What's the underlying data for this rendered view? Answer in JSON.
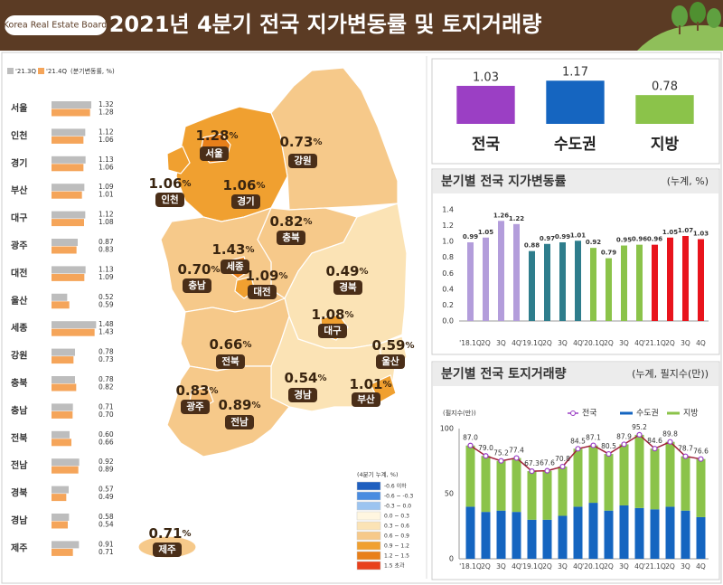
{
  "header": {
    "brand": "Korea Real Estate Board",
    "title": "2021년 4분기 전국 지가변동률 및 토지거래량"
  },
  "map": {
    "unit": "%",
    "regions": [
      {
        "name": "서울",
        "value": "1.28"
      },
      {
        "name": "강원",
        "value": "0.73"
      },
      {
        "name": "인천",
        "value": "1.06"
      },
      {
        "name": "경기",
        "value": "1.06"
      },
      {
        "name": "충북",
        "value": "0.82"
      },
      {
        "name": "세종",
        "value": "1.43"
      },
      {
        "name": "충남",
        "value": "0.70"
      },
      {
        "name": "대전",
        "value": "1.09"
      },
      {
        "name": "경북",
        "value": "0.49"
      },
      {
        "name": "대구",
        "value": "1.08"
      },
      {
        "name": "울산",
        "value": "0.59"
      },
      {
        "name": "전북",
        "value": "0.66"
      },
      {
        "name": "경남",
        "value": "0.54"
      },
      {
        "name": "부산",
        "value": "1.01"
      },
      {
        "name": "광주",
        "value": "0.83"
      },
      {
        "name": "전남",
        "value": "0.89"
      },
      {
        "name": "제주",
        "value": "0.71"
      }
    ],
    "legend": {
      "title": "(4분기 누계, %)",
      "items": [
        {
          "label": "-0.6 이하",
          "color": "#1f5fbf"
        },
        {
          "label": "-0.6 ~ -0.3",
          "color": "#4a8ce0"
        },
        {
          "label": "-0.3 ~ 0.0",
          "color": "#9cc4f0"
        },
        {
          "label": "0.0 ~ 0.3",
          "color": "#fff6e0"
        },
        {
          "label": "0.3 ~ 0.6",
          "color": "#fbe3b5"
        },
        {
          "label": "0.6 ~ 0.9",
          "color": "#f6c98a"
        },
        {
          "label": "0.9 ~ 1.2",
          "color": "#f0a030"
        },
        {
          "label": "1.2 ~ 1.5",
          "color": "#e87f1a"
        },
        {
          "label": "1.5 초과",
          "color": "#e8401c"
        }
      ]
    }
  },
  "chart_data": [
    {
      "type": "hbar",
      "subtitle": "(분기변동률, %)",
      "categories": [
        "서울",
        "인천",
        "경기",
        "부산",
        "대구",
        "광주",
        "대전",
        "울산",
        "세종",
        "강원",
        "충북",
        "충남",
        "전북",
        "전남",
        "경북",
        "경남",
        "제주"
      ],
      "xlim": [
        0,
        1.5
      ],
      "series": [
        {
          "name": "'21.3Q",
          "color": "#bdbdbd",
          "values": [
            1.32,
            1.12,
            1.13,
            1.09,
            1.12,
            0.87,
            1.13,
            0.52,
            1.48,
            0.78,
            0.78,
            0.71,
            0.6,
            0.92,
            0.57,
            0.58,
            0.91
          ],
          "value_labels": [
            "1.32",
            "1.12",
            "1.13",
            "1.09",
            "1.12",
            "0.87",
            "1.13",
            "0.52",
            "1.48",
            "0.78",
            "0.78",
            "0.71",
            "0.60",
            "0.92",
            "0.57",
            "0.58",
            "0.91"
          ]
        },
        {
          "name": "'21.4Q",
          "color": "#f5a55a",
          "values": [
            1.28,
            1.06,
            1.06,
            1.01,
            1.08,
            0.83,
            1.09,
            0.59,
            1.43,
            0.73,
            0.82,
            0.7,
            0.66,
            0.89,
            0.49,
            0.54,
            0.71
          ],
          "value_labels": [
            "1.28",
            "1.06",
            "1.06",
            "1.01",
            "1.08",
            "0.83",
            "1.09",
            "0.59",
            "1.43",
            "0.73",
            "0.82",
            "0.70",
            "0.66",
            "0.89",
            "0.49",
            "0.54",
            "0.71"
          ]
        }
      ]
    },
    {
      "type": "bar",
      "categories": [
        "전국",
        "수도권",
        "지방"
      ],
      "values": [
        1.03,
        1.17,
        0.78
      ],
      "colors": [
        "#9b3fc4",
        "#1565c0",
        "#8bc34a"
      ],
      "ylim": [
        0,
        1.2
      ]
    },
    {
      "type": "bar",
      "title": "분기별 전국 지가변동률",
      "subtitle": "(누계, %)",
      "categories": [
        "'18.1Q",
        "2Q",
        "3Q",
        "4Q",
        "'19.1Q",
        "2Q",
        "3Q",
        "4Q",
        "'20.1Q",
        "2Q",
        "3Q",
        "4Q",
        "'21.1Q",
        "2Q",
        "3Q",
        "4Q"
      ],
      "values": [
        0.99,
        1.05,
        1.26,
        1.22,
        0.88,
        0.97,
        0.99,
        1.01,
        0.92,
        0.79,
        0.95,
        0.96,
        0.96,
        1.05,
        1.07,
        1.03
      ],
      "colors": [
        "#b39ddb",
        "#b39ddb",
        "#b39ddb",
        "#b39ddb",
        "#2e7d8c",
        "#2e7d8c",
        "#2e7d8c",
        "#2e7d8c",
        "#8bc34a",
        "#8bc34a",
        "#8bc34a",
        "#8bc34a",
        "#e8141c",
        "#e8141c",
        "#e8141c",
        "#e8141c"
      ],
      "ylim": [
        0,
        1.4
      ],
      "yticks": [
        {
          "value": 0,
          "label": "0.0"
        },
        0.2,
        0.4,
        0.6,
        0.8,
        {
          "value": 1,
          "label": "1.0"
        },
        1.2,
        1.4
      ]
    },
    {
      "type": "stacked_bar",
      "title": "분기별 전국 토지거래량",
      "subtitle": "(누계, 필지수(만))",
      "y_label": "(필지수(만))",
      "categories": [
        "'18.1Q",
        "2Q",
        "3Q",
        "4Q",
        "'19.1Q",
        "2Q",
        "3Q",
        "4Q",
        "'20.1Q",
        "2Q",
        "3Q",
        "4Q",
        "'21.1Q",
        "2Q",
        "3Q",
        "4Q"
      ],
      "ylim": [
        0,
        100
      ],
      "yticks": [
        0,
        50,
        100
      ],
      "series": [
        {
          "name": "전국",
          "type": "line",
          "color": "#9b3fc4",
          "values": [
            87.0,
            79.0,
            75.2,
            77.4,
            67.3,
            67.6,
            70.8,
            84.5,
            87.1,
            80.5,
            87.9,
            95.2,
            84.6,
            89.8,
            78.7,
            76.6
          ],
          "value_labels": [
            "87.0",
            "79.0",
            "75.2",
            "77.4",
            "67.3",
            "67.6",
            "70.8",
            "84.5",
            "87.1",
            "80.5",
            "87.9",
            "95.2",
            "84.6",
            "89.8",
            "78.7",
            "76.6"
          ]
        },
        {
          "name": "수도권",
          "color": "#1565c0",
          "values": [
            40,
            36,
            37,
            36,
            30,
            30,
            33,
            40,
            43,
            37,
            41,
            39,
            38,
            40,
            37,
            32
          ]
        },
        {
          "name": "지방",
          "color": "#8bc34a",
          "values": [
            47,
            43,
            38.2,
            41.4,
            37.3,
            37.6,
            37.8,
            44.5,
            44.1,
            43.5,
            46.9,
            56.2,
            46.6,
            49.8,
            41.7,
            44.6
          ]
        }
      ]
    }
  ]
}
